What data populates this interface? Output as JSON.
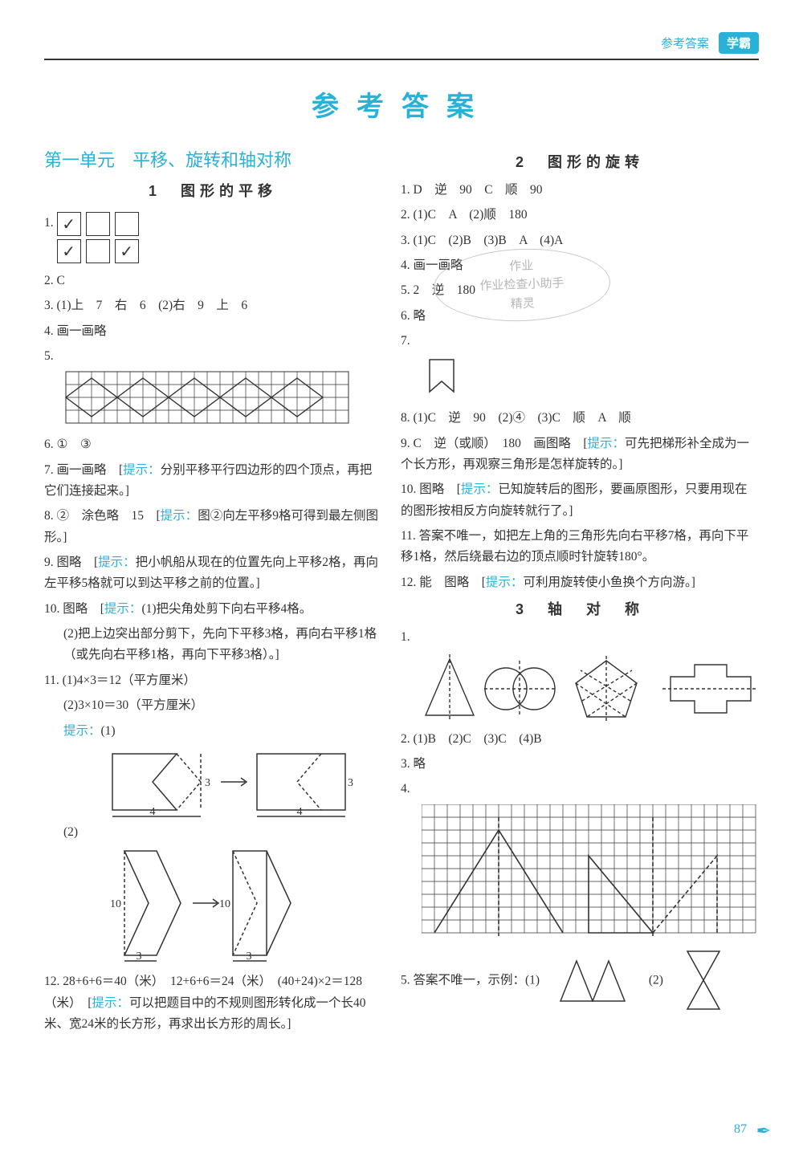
{
  "header": {
    "label": "参考答案",
    "badge": "学霸"
  },
  "page_title": "参考答案",
  "page_number": "87",
  "watermark": {
    "l1": "作业",
    "l2": "作业检查小助手",
    "l3": "精灵"
  },
  "colors": {
    "accent": "#2ab1d8",
    "text": "#333333",
    "grid": "#333333",
    "bg": "#ffffff",
    "wm": "#b7b7b7"
  },
  "left": {
    "unit_title": "第一单元　平移、旋转和轴对称",
    "sec1_title": "1　图形的平移",
    "q1": {
      "num": "1.",
      "row1": [
        "✓",
        "",
        ""
      ],
      "row2": [
        "✓",
        "",
        "✓"
      ]
    },
    "q2": "2. C",
    "q3": "3. (1)上　7　右　6　(2)右　9　上　6",
    "q4": "4. 画一画略",
    "q5": "5.",
    "q6": "6. ①　③",
    "q7_a": "7. 画一画略　[",
    "q7_h": "提示：",
    "q7_b": "分别平移平行四边形的四个顶点，再把它们连接起来。]",
    "q8_a": "8. ②　涂色略　15　[",
    "q8_h": "提示：",
    "q8_b": "图②向左平移9格可得到最左侧图形。]",
    "q9_a": "9. 图略　[",
    "q9_h": "提示：",
    "q9_b": "把小帆船从现在的位置先向上平移2格，再向左平移5格就可以到达平移之前的位置。]",
    "q10_a": "10. 图略　[",
    "q10_h": "提示：",
    "q10_b": "(1)把尖角处剪下向右平移4格。",
    "q10_c": "(2)把上边突出部分剪下，先向下平移3格，再向右平移1格（或先向右平移1格，再向下平移3格）。]",
    "q11_a": "11. (1)4×3＝12（平方厘米）",
    "q11_b": "(2)3×10＝30（平方厘米）",
    "q11_h": "提示：",
    "q11_c": "(1)",
    "q11_d": "(2)",
    "q12_a": "12. 28+6+6＝40（米）　12+6+6＝24（米）　(40+24)×2＝128（米）　[",
    "q12_h": "提示：",
    "q12_b": "可以把题目中的不规则图形转化成一个长40米、宽24米的长方形，再求出长方形的周长。]",
    "fig5": {
      "cols": 22,
      "rows": 4,
      "cell": 16
    },
    "fig11_1": {
      "w": 4,
      "h": 3
    },
    "fig11_2": {
      "w": 3,
      "h": 10
    }
  },
  "right": {
    "sec2_title": "2　图形的旋转",
    "r1": "1. D　逆　90　C　顺　90",
    "r2": "2. (1)C　A　(2)顺　180",
    "r3": "3. (1)C　(2)B　(3)B　A　(4)A",
    "r4": "4. 画一画略",
    "r5": "5. 2　逆　180",
    "r6": "6. 略",
    "r7": "7.",
    "r8": "8. (1)C　逆　90　(2)④　(3)C　顺　A　顺",
    "r9_a": "9. C　逆（或顺）　180　画图略　[",
    "r9_h": "提示：",
    "r9_b": "可先把梯形补全成为一个长方形，再观察三角形是怎样旋转的。]",
    "r10_a": "10. 图略　[",
    "r10_h": "提示：",
    "r10_b": "已知旋转后的图形，要画原图形，只要用现在的图形按相反方向旋转就行了。]",
    "r11": "11. 答案不唯一，如把左上角的三角形先向右平移7格，再向下平移1格，然后绕最右边的顶点顺时针旋转180°。",
    "r12_a": "12. 能　图略　[",
    "r12_h": "提示：",
    "r12_b": "可利用旋转使小鱼换个方向游。]",
    "sec3_title": "3　轴　对　称",
    "s1": "1.",
    "s2": "2. (1)B　(2)C　(3)C　(4)B",
    "s3": "3. 略",
    "s4": "4.",
    "s5": "5. 答案不唯一，示例：(1)",
    "s5b": "(2)",
    "grid4": {
      "cols": 26,
      "rows": 10,
      "cell": 16
    }
  }
}
